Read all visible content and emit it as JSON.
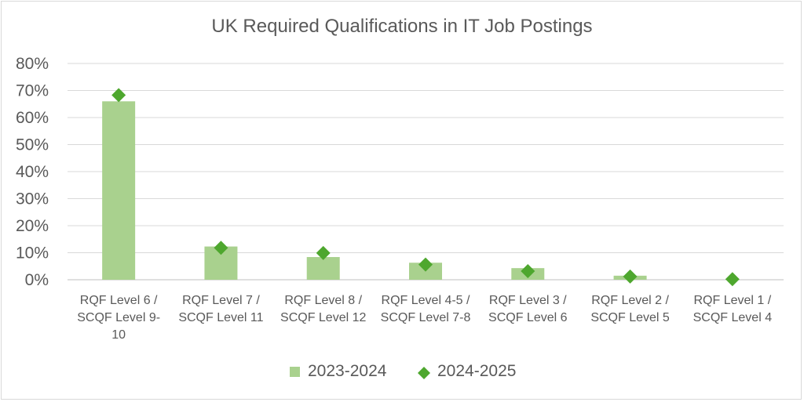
{
  "chart_data": {
    "type": "bar",
    "title": "UK Required Qualifications in IT Job Postings",
    "categories": [
      [
        "RQF Level 6 /",
        "SCQF Level 9-",
        "10"
      ],
      [
        "RQF Level 7 /",
        "SCQF Level 11"
      ],
      [
        "RQF Level 8 /",
        "SCQF Level 12"
      ],
      [
        "RQF Level 4-5 /",
        "SCQF Level 7-8"
      ],
      [
        "RQF Level 3 /",
        "SCQF Level 6"
      ],
      [
        "RQF Level 2 /",
        "SCQF Level 5"
      ],
      [
        "RQF Level 1 /",
        "SCQF Level 4"
      ]
    ],
    "series": [
      {
        "name": "2023-2024",
        "kind": "bar",
        "color": "#a9d18e",
        "values": [
          66,
          12.3,
          8.4,
          6.3,
          4.3,
          1.5,
          0
        ]
      },
      {
        "name": "2024-2025",
        "kind": "marker-diamond",
        "color": "#4ea72e",
        "values": [
          68.3,
          11.8,
          9.9,
          5.6,
          3.2,
          1.2,
          0.2
        ]
      }
    ],
    "ylim": [
      0,
      80
    ],
    "yticks": [
      "0%",
      "10%",
      "20%",
      "30%",
      "40%",
      "50%",
      "60%",
      "70%",
      "80%"
    ],
    "grid": true,
    "legend": "bottom"
  }
}
